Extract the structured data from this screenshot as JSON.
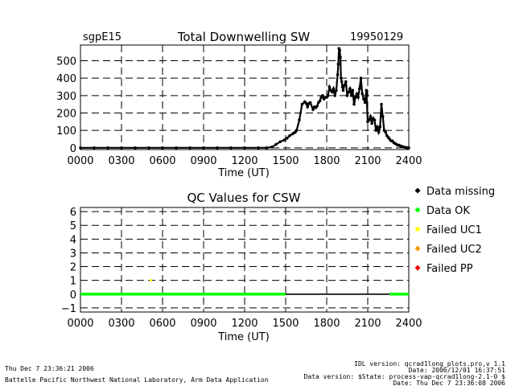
{
  "header": {
    "site": "sgpE15",
    "title": "Total Downwelling SW",
    "date": "19950129"
  },
  "chart_data": [
    {
      "type": "scatter",
      "title": "Total Downwelling SW",
      "xlabel": "Time (UT)",
      "ylabel": "",
      "xlim": [
        0,
        2400
      ],
      "ylim": [
        -10,
        590
      ],
      "x_ticks": [
        "0000",
        "0300",
        "0600",
        "0900",
        "1200",
        "1500",
        "1800",
        "2100",
        "2400"
      ],
      "y_ticks": [
        "0",
        "100",
        "200",
        "300",
        "400",
        "500"
      ],
      "grid": true,
      "series": [
        {
          "color": "#000000",
          "x": [
            0,
            100,
            200,
            300,
            400,
            500,
            600,
            700,
            800,
            900,
            1000,
            1100,
            1200,
            1300,
            1360,
            1400,
            1430,
            1460,
            1490,
            1510,
            1530,
            1550,
            1560,
            1570,
            1580,
            1600,
            1620,
            1640,
            1650,
            1660,
            1670,
            1680,
            1700,
            1710,
            1720,
            1730,
            1740,
            1750,
            1760,
            1770,
            1780,
            1790,
            1800,
            1810,
            1820,
            1830,
            1840,
            1850,
            1860,
            1870,
            1880,
            1885,
            1890,
            1895,
            1900,
            1905,
            1910,
            1915,
            1920,
            1930,
            1940,
            1950,
            1960,
            1970,
            1980,
            1990,
            2000,
            2010,
            2020,
            2030,
            2040,
            2050,
            2060,
            2070,
            2080,
            2090,
            2100,
            2110,
            2120,
            2130,
            2140,
            2150,
            2160,
            2170,
            2180,
            2190,
            2200,
            2210,
            2220,
            2230,
            2240,
            2250,
            2260,
            2270,
            2280,
            2290,
            2300,
            2310,
            2320,
            2330,
            2340,
            2350,
            2360,
            2370,
            2380,
            2390,
            2400
          ],
          "y": [
            0,
            0,
            0,
            0,
            0,
            0,
            0,
            0,
            0,
            0,
            0,
            0,
            0,
            0,
            0,
            5,
            20,
            35,
            45,
            55,
            70,
            80,
            85,
            90,
            100,
            160,
            250,
            265,
            255,
            235,
            255,
            260,
            220,
            235,
            230,
            240,
            260,
            270,
            290,
            300,
            280,
            290,
            290,
            300,
            350,
            330,
            320,
            340,
            300,
            330,
            420,
            480,
            570,
            560,
            520,
            400,
            380,
            350,
            330,
            360,
            380,
            300,
            320,
            340,
            300,
            330,
            250,
            290,
            310,
            290,
            340,
            400,
            310,
            280,
            260,
            330,
            150,
            160,
            180,
            140,
            170,
            160,
            100,
            120,
            90,
            120,
            250,
            180,
            100,
            90,
            70,
            60,
            50,
            40,
            40,
            30,
            25,
            20,
            15,
            15,
            10,
            8,
            5,
            3,
            2,
            0,
            0
          ]
        }
      ]
    },
    {
      "type": "scatter",
      "title": "QC Values for CSW",
      "xlabel": "Time (UT)",
      "ylabel": "",
      "xlim": [
        0,
        2400
      ],
      "ylim": [
        -1.3,
        6.3
      ],
      "x_ticks": [
        "0000",
        "0300",
        "0600",
        "0900",
        "1200",
        "1500",
        "1800",
        "2100",
        "2400"
      ],
      "y_ticks": [
        "−1",
        "0",
        "1",
        "2",
        "3",
        "4",
        "5",
        "6"
      ],
      "grid": true,
      "series": [
        {
          "name": "Data missing",
          "color": "#000000",
          "segments": [
            [
              1500,
              2260
            ]
          ],
          "value": 0
        },
        {
          "name": "Data OK",
          "color": "#00ff00",
          "segments": [
            [
              0,
              1500
            ],
            [
              2260,
              2400
            ]
          ],
          "value": 0
        },
        {
          "name": "Failed UC1",
          "color": "#ffff00",
          "points": [
            [
              515,
              1
            ]
          ]
        },
        {
          "name": "Failed UC2",
          "color": "#ff9900",
          "points": []
        },
        {
          "name": "Failed PP",
          "color": "#ff0000",
          "points": []
        }
      ]
    }
  ],
  "legend": [
    {
      "label": "Data missing",
      "color": "#000000"
    },
    {
      "label": "Data OK",
      "color": "#00ff00"
    },
    {
      "label": "Failed UC1",
      "color": "#ffff00"
    },
    {
      "label": "Failed UC2",
      "color": "#ff9900"
    },
    {
      "label": "Failed PP",
      "color": "#ff0000"
    }
  ],
  "footer": {
    "left_date": "Thu Dec  7 23:36:21 2006",
    "left_org": "Battelle Pacific Northwest National Laboratory, Arm Data Application",
    "right_line1": "IDL version: qcrad1long_plots.pro,v 1.1",
    "right_line2": "Date: 2006/12/01 16:37:51",
    "right_line3": "Data version: $State: process-vap-qcrad1long-2.1-0 $",
    "right_line4": "Date: Thu Dec  7 23:36:08 2006"
  }
}
